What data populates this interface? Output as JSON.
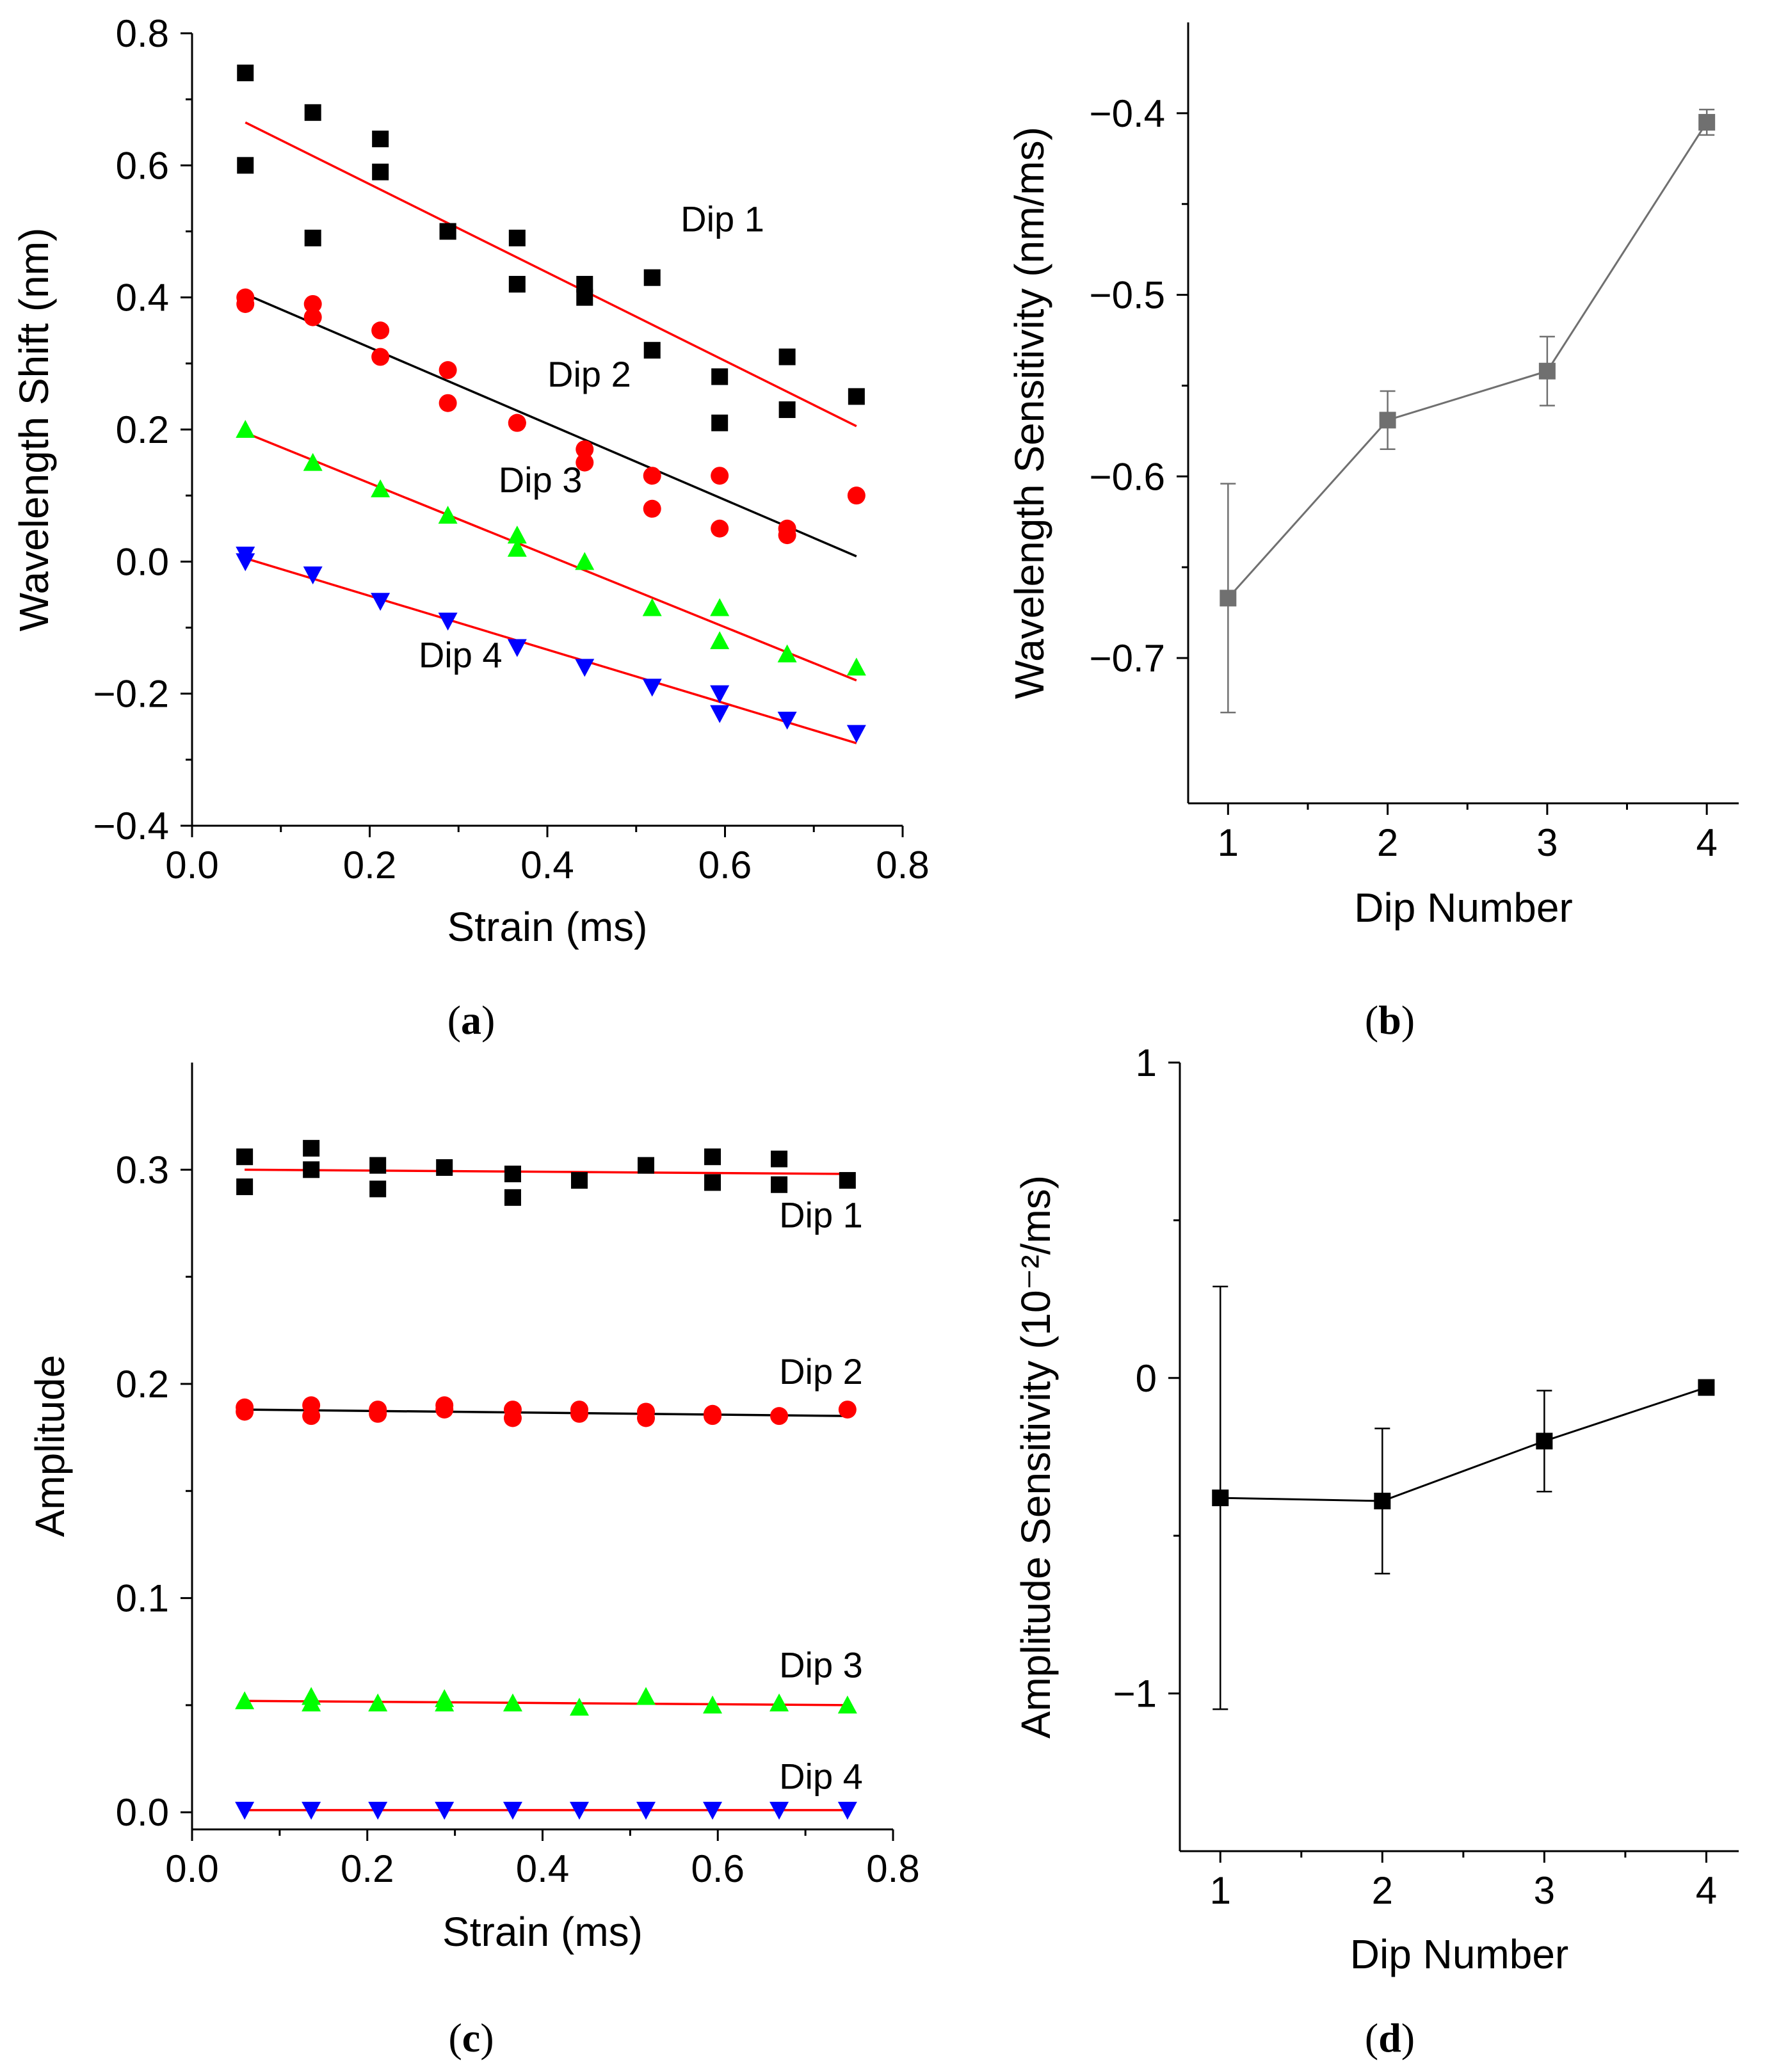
{
  "chart_data": [
    {
      "panel": "a",
      "type": "scatter",
      "caption_letter": "a",
      "xlabel": "Strain (ms)",
      "ylabel": "Wavelength Shift (nm)",
      "xlim": [
        0.0,
        0.8
      ],
      "ylim": [
        -0.4,
        0.8
      ],
      "xticks": [
        0.0,
        0.2,
        0.4,
        0.6,
        0.8
      ],
      "xtick_labels": [
        "0.0",
        "0.2",
        "0.4",
        "0.6",
        "0.8"
      ],
      "yticks": [
        -0.4,
        -0.2,
        0.0,
        0.2,
        0.4,
        0.6,
        0.8
      ],
      "ytick_labels": [
        "−0.4",
        "−0.2",
        "0.0",
        "0.2",
        "0.4",
        "0.6",
        "0.8"
      ],
      "series": [
        {
          "name": "Dip 1",
          "label": "Dip 1",
          "marker": "square",
          "color": "#000000",
          "fit_color": "#ff0000",
          "label_pos": [
            0.55,
            0.5
          ],
          "x": [
            0.06,
            0.06,
            0.136,
            0.136,
            0.212,
            0.212,
            0.288,
            0.288,
            0.366,
            0.366,
            0.442,
            0.442,
            0.518,
            0.518,
            0.594,
            0.594,
            0.67,
            0.67,
            0.748
          ],
          "y": [
            0.74,
            0.6,
            0.68,
            0.49,
            0.64,
            0.59,
            0.5,
            0.5,
            0.49,
            0.42,
            0.42,
            0.4,
            0.43,
            0.32,
            0.28,
            0.21,
            0.31,
            0.23,
            0.25
          ],
          "fit": {
            "x": [
              0.06,
              0.748
            ],
            "y": [
              0.665,
              0.205
            ]
          }
        },
        {
          "name": "Dip 2",
          "label": "Dip 2",
          "marker": "circle",
          "color": "#ff0000",
          "fit_color": "#000000",
          "label_pos": [
            0.4,
            0.265
          ],
          "x": [
            0.06,
            0.06,
            0.136,
            0.136,
            0.212,
            0.212,
            0.288,
            0.288,
            0.366,
            0.366,
            0.442,
            0.442,
            0.518,
            0.518,
            0.594,
            0.594,
            0.67,
            0.67,
            0.748
          ],
          "y": [
            0.4,
            0.39,
            0.39,
            0.37,
            0.35,
            0.31,
            0.29,
            0.24,
            0.21,
            0.21,
            0.17,
            0.15,
            0.13,
            0.08,
            0.13,
            0.05,
            0.05,
            0.04,
            0.1
          ],
          "fit": {
            "x": [
              0.06,
              0.748
            ],
            "y": [
              0.405,
              0.008
            ]
          }
        },
        {
          "name": "Dip 3",
          "label": "Dip 3",
          "marker": "triangle-up",
          "color": "#00ff00",
          "fit_color": "#ff0000",
          "label_pos": [
            0.345,
            0.105
          ],
          "x": [
            0.06,
            0.136,
            0.212,
            0.288,
            0.366,
            0.366,
            0.442,
            0.518,
            0.594,
            0.594,
            0.67,
            0.748
          ],
          "y": [
            0.2,
            0.15,
            0.11,
            0.07,
            0.04,
            0.02,
            0.0,
            -0.07,
            -0.07,
            -0.12,
            -0.14,
            -0.16
          ],
          "fit": {
            "x": [
              0.06,
              0.748
            ],
            "y": [
              0.195,
              -0.18
            ]
          }
        },
        {
          "name": "Dip 4",
          "label": "Dip 4",
          "marker": "triangle-down",
          "color": "#0000ff",
          "fit_color": "#ff0000",
          "label_pos": [
            0.255,
            -0.16
          ],
          "x": [
            0.06,
            0.06,
            0.136,
            0.212,
            0.288,
            0.366,
            0.442,
            0.518,
            0.594,
            0.594,
            0.67,
            0.748
          ],
          "y": [
            0.01,
            0.0,
            -0.02,
            -0.06,
            -0.09,
            -0.13,
            -0.16,
            -0.19,
            -0.2,
            -0.23,
            -0.24,
            -0.26
          ],
          "fit": {
            "x": [
              0.06,
              0.748
            ],
            "y": [
              0.005,
              -0.275
            ]
          }
        }
      ]
    },
    {
      "panel": "b",
      "type": "line",
      "caption_letter": "b",
      "xlabel": "Dip Number",
      "ylabel": "Wavelength Sensitivity (nm/ms)",
      "xlim": [
        0.75,
        4.2
      ],
      "ylim": [
        -0.78,
        -0.35
      ],
      "xticks": [
        1,
        2,
        3,
        4
      ],
      "xtick_labels": [
        "1",
        "2",
        "3",
        "4"
      ],
      "yticks": [
        -0.7,
        -0.6,
        -0.5,
        -0.4
      ],
      "ytick_labels": [
        "−0.7",
        "−0.6",
        "−0.5",
        "−0.4"
      ],
      "series": [
        {
          "name": "Wavelength Sensitivity",
          "marker": "square",
          "color": "#707070",
          "x": [
            1,
            2,
            3,
            4
          ],
          "y": [
            -0.667,
            -0.569,
            -0.542,
            -0.405
          ],
          "err": [
            0.063,
            0.016,
            0.019,
            0.007
          ]
        }
      ]
    },
    {
      "panel": "c",
      "type": "scatter",
      "caption_letter": "c",
      "xlabel": "Strain (ms)",
      "ylabel": "Amplitude",
      "xlim": [
        0.0,
        0.8
      ],
      "ylim": [
        -0.008,
        0.35
      ],
      "xticks": [
        0.0,
        0.2,
        0.4,
        0.6,
        0.8
      ],
      "xtick_labels": [
        "0.0",
        "0.2",
        "0.4",
        "0.6",
        "0.8"
      ],
      "yticks": [
        0.0,
        0.1,
        0.2,
        0.3
      ],
      "ytick_labels": [
        "0.0",
        "0.1",
        "0.2",
        "0.3"
      ],
      "series": [
        {
          "name": "Dip 1",
          "label": "Dip 1",
          "marker": "square",
          "color": "#000000",
          "fit_color": "#ff0000",
          "label_pos": [
            0.67,
            0.273
          ],
          "x": [
            0.06,
            0.06,
            0.136,
            0.136,
            0.212,
            0.212,
            0.288,
            0.366,
            0.366,
            0.442,
            0.518,
            0.594,
            0.594,
            0.67,
            0.67,
            0.748
          ],
          "y": [
            0.306,
            0.292,
            0.31,
            0.3,
            0.302,
            0.291,
            0.301,
            0.298,
            0.287,
            0.295,
            0.302,
            0.306,
            0.294,
            0.305,
            0.293,
            0.295
          ],
          "fit": {
            "x": [
              0.06,
              0.748
            ],
            "y": [
              0.3,
              0.298
            ]
          }
        },
        {
          "name": "Dip 2",
          "label": "Dip 2",
          "marker": "circle",
          "color": "#ff0000",
          "fit_color": "#000000",
          "label_pos": [
            0.67,
            0.2
          ],
          "x": [
            0.06,
            0.06,
            0.136,
            0.136,
            0.212,
            0.212,
            0.288,
            0.288,
            0.366,
            0.366,
            0.442,
            0.442,
            0.518,
            0.518,
            0.594,
            0.594,
            0.67,
            0.748
          ],
          "y": [
            0.189,
            0.187,
            0.19,
            0.185,
            0.188,
            0.186,
            0.19,
            0.188,
            0.188,
            0.184,
            0.188,
            0.186,
            0.187,
            0.184,
            0.186,
            0.185,
            0.185,
            0.188
          ],
          "fit": {
            "x": [
              0.06,
              0.748
            ],
            "y": [
              0.188,
              0.185
            ]
          }
        },
        {
          "name": "Dip 3",
          "label": "Dip 3",
          "marker": "triangle-up",
          "color": "#00ff00",
          "fit_color": "#ff0000",
          "label_pos": [
            0.67,
            0.063
          ],
          "x": [
            0.06,
            0.136,
            0.136,
            0.212,
            0.288,
            0.288,
            0.366,
            0.442,
            0.518,
            0.594,
            0.67,
            0.748
          ],
          "y": [
            0.052,
            0.054,
            0.051,
            0.051,
            0.053,
            0.051,
            0.051,
            0.049,
            0.054,
            0.05,
            0.051,
            0.05
          ],
          "fit": {
            "x": [
              0.06,
              0.748
            ],
            "y": [
              0.052,
              0.05
            ]
          }
        },
        {
          "name": "Dip 4",
          "label": "Dip 4",
          "marker": "triangle-down",
          "color": "#0000ff",
          "fit_color": "#ff0000",
          "label_pos": [
            0.67,
            0.011
          ],
          "x": [
            0.06,
            0.136,
            0.212,
            0.288,
            0.366,
            0.442,
            0.518,
            0.594,
            0.67,
            0.748
          ],
          "y": [
            0.001,
            0.001,
            0.001,
            0.001,
            0.001,
            0.001,
            0.001,
            0.001,
            0.001,
            0.001
          ],
          "fit": {
            "x": [
              0.06,
              0.748
            ],
            "y": [
              0.001,
              0.001
            ]
          }
        }
      ]
    },
    {
      "panel": "d",
      "type": "line",
      "caption_letter": "d",
      "xlabel": "Dip Number",
      "ylabel": "Amplitude Sensitivity (10⁻²/ms)",
      "xlim": [
        0.75,
        4.2
      ],
      "ylim": [
        -1.5,
        1.0
      ],
      "xticks": [
        1,
        2,
        3,
        4
      ],
      "xtick_labels": [
        "1",
        "2",
        "3",
        "4"
      ],
      "yticks": [
        -1,
        0,
        1
      ],
      "ytick_labels": [
        "−1",
        "0",
        "1"
      ],
      "series": [
        {
          "name": "Amplitude Sensitivity",
          "marker": "square",
          "color": "#000000",
          "x": [
            1,
            2,
            3,
            4
          ],
          "y": [
            -0.38,
            -0.39,
            -0.2,
            -0.03
          ],
          "err": [
            0.67,
            0.23,
            0.16,
            0.0
          ]
        }
      ]
    }
  ]
}
